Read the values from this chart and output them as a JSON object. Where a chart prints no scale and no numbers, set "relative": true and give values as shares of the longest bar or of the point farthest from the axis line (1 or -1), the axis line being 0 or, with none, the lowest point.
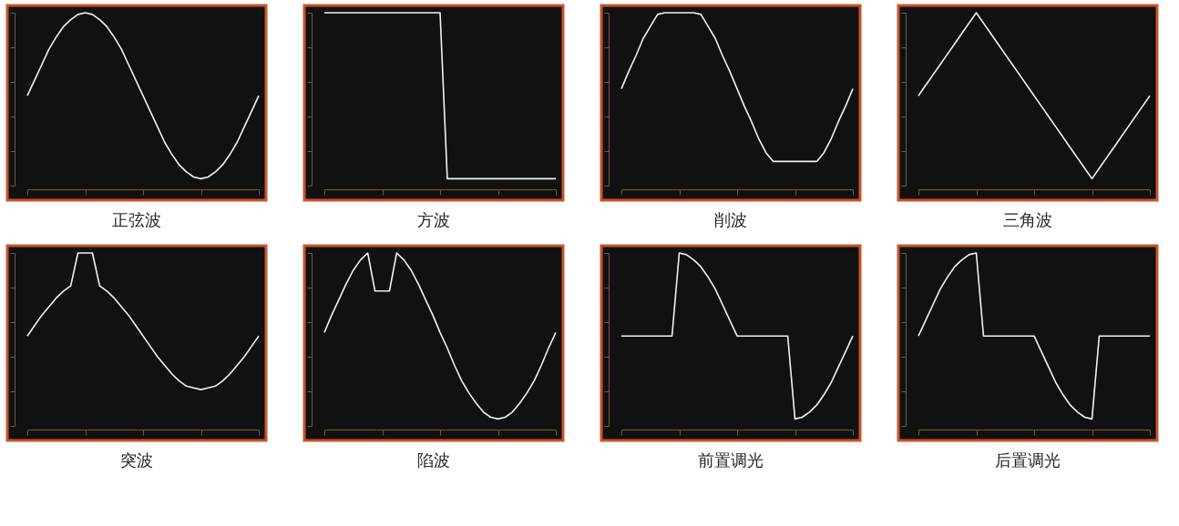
{
  "chart_data": [
    {
      "type": "line",
      "title": "正弦波",
      "relative": true,
      "grid": false,
      "categories": [
        null,
        null,
        null,
        null,
        null,
        null,
        null,
        null,
        null,
        null,
        null,
        null,
        null,
        null,
        null,
        null,
        null,
        null,
        null,
        null,
        null,
        null,
        null,
        null,
        null,
        null,
        null,
        null,
        null,
        null,
        null,
        null,
        null
      ],
      "series": [
        {
          "color": "#f2f2f2",
          "values": [
            0.52,
            0.61,
            0.7,
            0.79,
            0.86,
            0.92,
            0.96,
            0.99,
            1.0,
            0.99,
            0.96,
            0.92,
            0.86,
            0.79,
            0.7,
            0.61,
            0.52,
            0.43,
            0.34,
            0.25,
            0.18,
            0.12,
            0.08,
            0.05,
            0.04,
            0.05,
            0.08,
            0.12,
            0.18,
            0.25,
            0.34,
            0.43,
            0.52
          ]
        }
      ]
    },
    {
      "type": "line",
      "title": "方波",
      "relative": true,
      "grid": false,
      "categories": [
        null,
        null,
        null,
        null,
        null,
        null,
        null,
        null,
        null,
        null,
        null,
        null,
        null,
        null,
        null,
        null,
        null,
        null,
        null,
        null,
        null,
        null,
        null,
        null,
        null,
        null,
        null,
        null,
        null,
        null,
        null,
        null,
        null
      ],
      "series": [
        {
          "color": "#f2f2f2",
          "values": [
            1,
            1,
            1,
            1,
            1,
            1,
            1,
            1,
            1,
            1,
            1,
            1,
            1,
            1,
            1,
            1,
            1,
            0.04,
            0.04,
            0.04,
            0.04,
            0.04,
            0.04,
            0.04,
            0.04,
            0.04,
            0.04,
            0.04,
            0.04,
            0.04,
            0.04,
            0.04,
            0.04
          ]
        }
      ]
    },
    {
      "type": "line",
      "title": "削波",
      "relative": true,
      "grid": false,
      "categories": [
        null,
        null,
        null,
        null,
        null,
        null,
        null,
        null,
        null,
        null,
        null,
        null,
        null,
        null,
        null,
        null,
        null,
        null,
        null,
        null,
        null,
        null,
        null,
        null,
        null,
        null,
        null,
        null,
        null,
        null,
        null,
        null,
        null
      ],
      "series": [
        {
          "color": "#f2f2f2",
          "values": [
            0.56,
            0.66,
            0.75,
            0.85,
            0.92,
            0.99,
            1,
            1,
            1,
            1,
            1,
            0.99,
            0.92,
            0.85,
            0.75,
            0.66,
            0.56,
            0.46,
            0.37,
            0.27,
            0.19,
            0.14,
            0.14,
            0.14,
            0.14,
            0.14,
            0.14,
            0.14,
            0.19,
            0.27,
            0.37,
            0.46,
            0.56
          ]
        }
      ]
    },
    {
      "type": "line",
      "title": "三角波",
      "relative": true,
      "grid": false,
      "categories": [
        null,
        null,
        null,
        null,
        null,
        null,
        null,
        null,
        null,
        null,
        null,
        null,
        null,
        null,
        null,
        null,
        null,
        null,
        null,
        null,
        null,
        null,
        null,
        null,
        null,
        null,
        null,
        null,
        null,
        null,
        null,
        null,
        null
      ],
      "series": [
        {
          "color": "#f2f2f2",
          "values": [
            0.52,
            0.58,
            0.64,
            0.7,
            0.76,
            0.82,
            0.88,
            0.94,
            1.0,
            0.94,
            0.88,
            0.82,
            0.76,
            0.7,
            0.64,
            0.58,
            0.52,
            0.46,
            0.4,
            0.34,
            0.28,
            0.22,
            0.16,
            0.1,
            0.04,
            0.1,
            0.16,
            0.22,
            0.28,
            0.34,
            0.4,
            0.46,
            0.52
          ]
        }
      ]
    },
    {
      "type": "line",
      "title": "突波",
      "relative": true,
      "grid": false,
      "categories": [
        null,
        null,
        null,
        null,
        null,
        null,
        null,
        null,
        null,
        null,
        null,
        null,
        null,
        null,
        null,
        null,
        null,
        null,
        null,
        null,
        null,
        null,
        null,
        null,
        null,
        null,
        null,
        null,
        null,
        null,
        null,
        null,
        null
      ],
      "series": [
        {
          "color": "#f2f2f2",
          "values": [
            0.52,
            0.58,
            0.64,
            0.69,
            0.74,
            0.78,
            0.81,
            1.0,
            1.0,
            1.0,
            0.81,
            0.78,
            0.74,
            0.69,
            0.64,
            0.58,
            0.52,
            0.46,
            0.4,
            0.35,
            0.3,
            0.26,
            0.23,
            0.22,
            0.21,
            0.22,
            0.23,
            0.26,
            0.3,
            0.35,
            0.4,
            0.46,
            0.52
          ]
        }
      ]
    },
    {
      "type": "line",
      "title": "陷波",
      "relative": true,
      "grid": false,
      "categories": [
        null,
        null,
        null,
        null,
        null,
        null,
        null,
        null,
        null,
        null,
        null,
        null,
        null,
        null,
        null,
        null,
        null,
        null,
        null,
        null,
        null,
        null,
        null,
        null,
        null,
        null,
        null,
        null,
        null,
        null,
        null,
        null,
        null
      ],
      "series": [
        {
          "color": "#f2f2f2",
          "values": [
            0.54,
            0.64,
            0.73,
            0.82,
            0.9,
            0.96,
            1,
            0.78,
            0.78,
            0.78,
            1,
            0.96,
            0.9,
            0.82,
            0.73,
            0.64,
            0.54,
            0.45,
            0.35,
            0.26,
            0.19,
            0.13,
            0.08,
            0.05,
            0.04,
            0.05,
            0.08,
            0.13,
            0.19,
            0.26,
            0.35,
            0.45,
            0.54
          ]
        }
      ]
    },
    {
      "type": "line",
      "title": "前置调光",
      "relative": true,
      "grid": false,
      "categories": [
        null,
        null,
        null,
        null,
        null,
        null,
        null,
        null,
        null,
        null,
        null,
        null,
        null,
        null,
        null,
        null,
        null,
        null,
        null,
        null,
        null,
        null,
        null,
        null,
        null,
        null,
        null,
        null,
        null,
        null,
        null,
        null,
        null
      ],
      "series": [
        {
          "color": "#f2f2f2",
          "values": [
            0.52,
            0.52,
            0.52,
            0.52,
            0.52,
            0.52,
            0.52,
            0.52,
            1.0,
            0.99,
            0.96,
            0.92,
            0.86,
            0.79,
            0.7,
            0.61,
            0.52,
            0.52,
            0.52,
            0.52,
            0.52,
            0.52,
            0.52,
            0.52,
            0.04,
            0.05,
            0.08,
            0.12,
            0.18,
            0.25,
            0.34,
            0.43,
            0.52
          ]
        }
      ]
    },
    {
      "type": "line",
      "title": "后置调光",
      "relative": true,
      "grid": false,
      "categories": [
        null,
        null,
        null,
        null,
        null,
        null,
        null,
        null,
        null,
        null,
        null,
        null,
        null,
        null,
        null,
        null,
        null,
        null,
        null,
        null,
        null,
        null,
        null,
        null,
        null,
        null,
        null,
        null,
        null,
        null,
        null,
        null,
        null
      ],
      "series": [
        {
          "color": "#f2f2f2",
          "values": [
            0.52,
            0.61,
            0.7,
            0.79,
            0.86,
            0.92,
            0.96,
            0.99,
            1.0,
            0.52,
            0.52,
            0.52,
            0.52,
            0.52,
            0.52,
            0.52,
            0.52,
            0.43,
            0.34,
            0.25,
            0.18,
            0.12,
            0.08,
            0.05,
            0.04,
            0.52,
            0.52,
            0.52,
            0.52,
            0.52,
            0.52,
            0.52,
            0.52
          ]
        }
      ]
    }
  ]
}
